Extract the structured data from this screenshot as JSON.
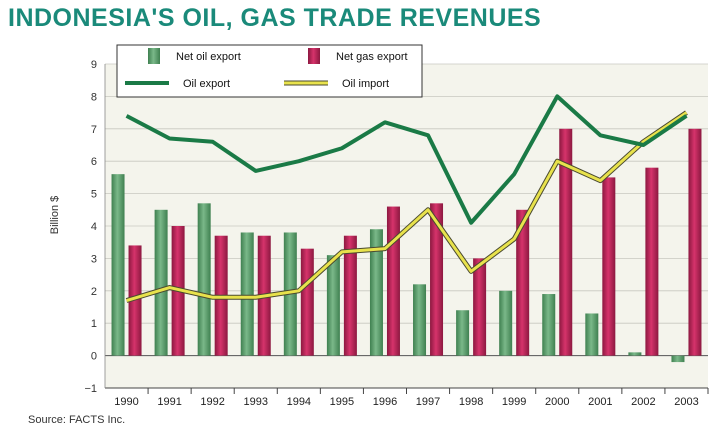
{
  "colors": {
    "title": "#1a8a7a",
    "plot_bg": "#f4f4ec",
    "grid": "#c8c8c0",
    "net_oil_bar": "#7ab889",
    "net_oil_bar_dark": "#3f8050",
    "net_gas_bar": "#d6336b",
    "net_gas_bar_dark": "#8c1840",
    "oil_export_line": "#1a7a46",
    "oil_import_line": "#e8e24c",
    "oil_import_outline": "#4a4a30"
  },
  "chart_data": {
    "type": "bar",
    "title": "INDONESIA'S OIL, GAS TRADE REVENUES",
    "ylabel": "Billion $",
    "xlabel": "",
    "ylim": [
      -1,
      9
    ],
    "yticks": [
      "−1",
      "0",
      "1",
      "2",
      "3",
      "4",
      "5",
      "6",
      "7",
      "8",
      "9"
    ],
    "grid": true,
    "legend_position": "top-left",
    "categories": [
      "1990",
      "1991",
      "1992",
      "1993",
      "1994",
      "1995",
      "1996",
      "1997",
      "1998",
      "1999",
      "2000",
      "2001",
      "2002",
      "2003"
    ],
    "series": [
      {
        "name": "Net oil export",
        "kind": "bar",
        "values": [
          5.6,
          4.5,
          4.7,
          3.8,
          3.8,
          3.1,
          3.9,
          2.2,
          1.4,
          2.0,
          1.9,
          1.3,
          0.1,
          -0.2
        ]
      },
      {
        "name": "Net gas export",
        "kind": "bar",
        "values": [
          3.4,
          4.0,
          3.7,
          3.7,
          3.3,
          3.7,
          4.6,
          4.7,
          3.0,
          4.5,
          7.0,
          5.5,
          5.8,
          7.0
        ]
      },
      {
        "name": "Oil export",
        "kind": "line",
        "values": [
          7.4,
          6.7,
          6.6,
          5.7,
          6.0,
          6.4,
          7.2,
          6.8,
          4.1,
          5.6,
          8.0,
          6.8,
          6.5,
          7.4
        ]
      },
      {
        "name": "Oil import",
        "kind": "line",
        "values": [
          1.7,
          2.1,
          1.8,
          1.8,
          2.0,
          3.2,
          3.3,
          4.5,
          2.6,
          3.6,
          6.0,
          5.4,
          6.6,
          7.5
        ]
      }
    ],
    "source": "Source: FACTS Inc."
  }
}
